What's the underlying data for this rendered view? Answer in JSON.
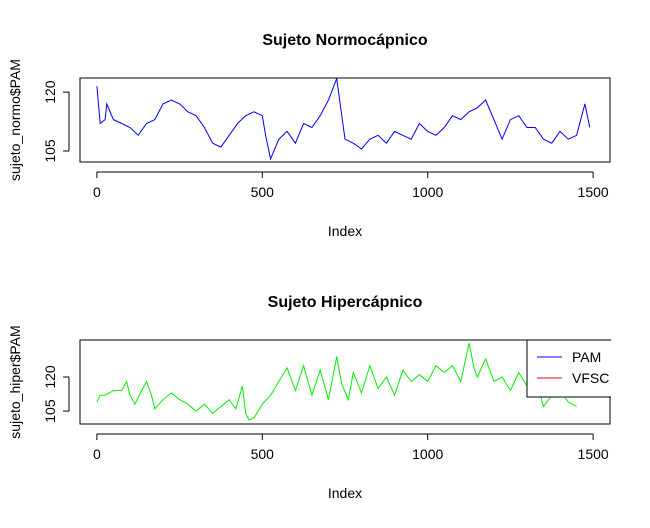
{
  "chart_data": [
    {
      "type": "line",
      "title": "Sujeto Normocápnico",
      "x_label": "Index",
      "y_label": "sujeto_normo$PAM",
      "x": [
        0,
        10,
        25,
        30,
        50,
        75,
        100,
        125,
        150,
        175,
        200,
        225,
        250,
        275,
        300,
        325,
        350,
        375,
        400,
        425,
        450,
        475,
        500,
        510,
        525,
        550,
        575,
        600,
        625,
        650,
        675,
        700,
        725,
        750,
        775,
        800,
        825,
        850,
        875,
        900,
        925,
        950,
        975,
        1000,
        1025,
        1050,
        1075,
        1100,
        1125,
        1150,
        1175,
        1200,
        1225,
        1250,
        1275,
        1300,
        1325,
        1350,
        1375,
        1400,
        1425,
        1450,
        1475,
        1490
      ],
      "values": [
        121.5,
        112,
        113,
        117,
        113,
        112,
        111,
        109,
        112,
        113,
        117,
        118,
        117,
        115,
        114,
        111,
        107,
        106,
        109,
        112,
        114,
        115,
        114,
        109,
        103,
        108,
        110,
        107,
        112,
        111,
        114,
        118,
        123.5,
        108,
        107,
        105.5,
        108,
        109,
        107,
        110,
        109,
        108,
        112,
        110,
        109,
        111,
        114,
        113,
        115,
        116,
        118,
        113,
        108,
        113,
        114,
        111,
        111,
        108,
        107,
        110,
        108,
        109,
        117,
        111
      ],
      "color": "#0000ff",
      "xlim": [
        -51,
        1551
      ],
      "ylim": [
        102.2,
        123.6
      ],
      "xticks": [
        0,
        500,
        1000,
        1500
      ],
      "yticks": [
        105,
        120
      ]
    },
    {
      "type": "line",
      "title": "Sujeto Hipercápnico",
      "x_label": "Index",
      "y_label": "sujeto_hiper$PAM",
      "x": [
        0,
        10,
        25,
        50,
        75,
        90,
        100,
        115,
        125,
        150,
        165,
        175,
        200,
        225,
        250,
        275,
        300,
        325,
        350,
        375,
        400,
        420,
        440,
        450,
        460,
        475,
        500,
        525,
        550,
        575,
        600,
        625,
        650,
        675,
        700,
        725,
        740,
        760,
        775,
        800,
        825,
        850,
        875,
        900,
        925,
        950,
        975,
        1000,
        1025,
        1050,
        1075,
        1100,
        1125,
        1140,
        1150,
        1175,
        1200,
        1225,
        1250,
        1275,
        1300,
        1325,
        1350,
        1375,
        1400,
        1425,
        1450
      ],
      "values": [
        109,
        112,
        112,
        114,
        114,
        118,
        112,
        108,
        111,
        118,
        112,
        106,
        110,
        113,
        110,
        108,
        105,
        108,
        104,
        107,
        110,
        106,
        116,
        104,
        101,
        102,
        108,
        112,
        118,
        124,
        114,
        125,
        112,
        123,
        110,
        129,
        117,
        110,
        122,
        113,
        125,
        115,
        120,
        112,
        123,
        118,
        121,
        118,
        125,
        122,
        125,
        118,
        135,
        124,
        120,
        128,
        118,
        120,
        114,
        122,
        116,
        120,
        107,
        112,
        114,
        109,
        107
      ],
      "color": "#00ee00",
      "xlim": [
        -51,
        1551
      ],
      "ylim": [
        99.3,
        136.3
      ],
      "xticks": [
        0,
        500,
        1000,
        1500
      ],
      "yticks": [
        105,
        120
      ],
      "legend": {
        "labels": [
          "PAM",
          "VFSC"
        ],
        "colors": [
          "#0000ff",
          "#ff0000"
        ],
        "position": "top-right"
      }
    }
  ]
}
